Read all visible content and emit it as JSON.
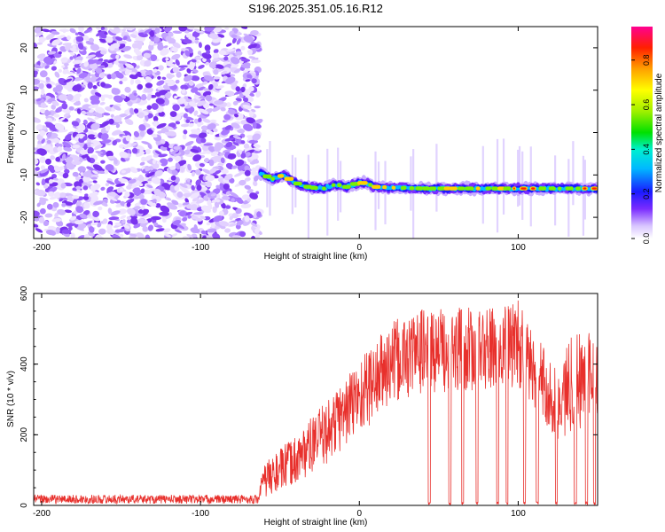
{
  "title": "S196.2025.351.05.16.R12",
  "chart_data": [
    {
      "type": "heatmap",
      "xlabel": "Height of straight line (km)",
      "ylabel": "Frequency (Hz)",
      "xlim": [
        -205,
        150
      ],
      "ylim": [
        -25,
        25
      ],
      "xticks": [
        -200,
        -100,
        0,
        100
      ],
      "xtick_labels": [
        "-200",
        "-100",
        "0",
        "100"
      ],
      "yticks": [
        -20,
        -10,
        0,
        10,
        20
      ],
      "ytick_labels": [
        "-20",
        "-10",
        "0",
        "10",
        "20"
      ],
      "noise_region_x": [
        -205,
        -63
      ],
      "signal_track": [
        {
          "x": -62,
          "y": -9.5
        },
        {
          "x": -55,
          "y": -11
        },
        {
          "x": -48,
          "y": -10
        },
        {
          "x": -42,
          "y": -11.5
        },
        {
          "x": -36,
          "y": -12.5
        },
        {
          "x": -30,
          "y": -13
        },
        {
          "x": -22,
          "y": -13.2
        },
        {
          "x": -15,
          "y": -12.2
        },
        {
          "x": -8,
          "y": -12.8
        },
        {
          "x": 0,
          "y": -11.8
        },
        {
          "x": 5,
          "y": -12
        },
        {
          "x": 10,
          "y": -12.8
        },
        {
          "x": 20,
          "y": -13
        },
        {
          "x": 40,
          "y": -13.2
        },
        {
          "x": 60,
          "y": -13.2
        },
        {
          "x": 80,
          "y": -13.2
        },
        {
          "x": 100,
          "y": -13.2
        },
        {
          "x": 120,
          "y": -13.2
        },
        {
          "x": 150,
          "y": -13.2
        }
      ],
      "colorbar": {
        "label": "Normalized spectral amplitude",
        "range": [
          0.0,
          0.95
        ],
        "ticks": [
          0.0,
          0.2,
          0.4,
          0.6,
          0.8
        ],
        "tick_labels": [
          "0.0",
          "0.2",
          "0.4",
          "0.6",
          "0.8"
        ]
      }
    },
    {
      "type": "line",
      "xlabel": "Height of straight line (km)",
      "ylabel": "SNR (10 * v/v)",
      "xlim": [
        -205,
        150
      ],
      "ylim": [
        0,
        600
      ],
      "xticks": [
        -200,
        -100,
        0,
        100
      ],
      "xtick_labels": [
        "-200",
        "-100",
        "0",
        "100"
      ],
      "yticks": [
        0,
        200,
        400,
        600
      ],
      "ytick_labels": [
        "0",
        "200",
        "400",
        "600"
      ],
      "color": "#e8302c",
      "envelope": [
        {
          "x": -205,
          "lo": 5,
          "hi": 30
        },
        {
          "x": -64,
          "lo": 5,
          "hi": 30
        },
        {
          "x": -60,
          "lo": 20,
          "hi": 120
        },
        {
          "x": -40,
          "lo": 60,
          "hi": 200
        },
        {
          "x": -20,
          "lo": 120,
          "hi": 300
        },
        {
          "x": 0,
          "lo": 200,
          "hi": 420
        },
        {
          "x": 20,
          "lo": 280,
          "hi": 520
        },
        {
          "x": 40,
          "lo": 320,
          "hi": 560
        },
        {
          "x": 60,
          "lo": 320,
          "hi": 560
        },
        {
          "x": 80,
          "lo": 320,
          "hi": 560
        },
        {
          "x": 98,
          "lo": 330,
          "hi": 600
        },
        {
          "x": 110,
          "lo": 280,
          "hi": 500
        },
        {
          "x": 125,
          "lo": 180,
          "hi": 380
        },
        {
          "x": 135,
          "lo": 200,
          "hi": 520
        },
        {
          "x": 150,
          "lo": 250,
          "hi": 480
        }
      ],
      "dropouts_x": [
        44,
        57,
        65,
        74,
        87,
        93,
        104,
        112,
        124,
        136,
        143,
        148
      ]
    }
  ]
}
